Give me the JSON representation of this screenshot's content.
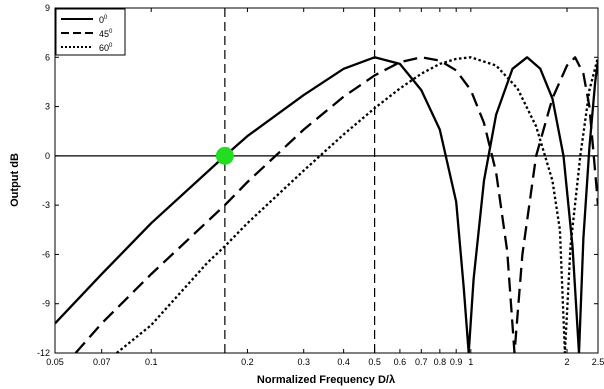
{
  "chart_data": {
    "type": "line",
    "xlabel": "Normalized Frequency  D/λ",
    "ylabel": "Output  dB",
    "x_scale": "log",
    "xlim": [
      0.05,
      2.5
    ],
    "ylim": [
      -12,
      9
    ],
    "x_ticks": [
      0.05,
      0.07,
      0.1,
      0.2,
      0.3,
      0.4,
      0.5,
      0.6,
      0.7,
      0.8,
      0.9,
      1,
      2,
      2.5
    ],
    "x_tick_labels": [
      "0.05",
      "0.07",
      "0.1",
      "0.2",
      "0.3",
      "0.4",
      "0.5",
      "0.6",
      "0.7",
      "0.8",
      "0.9",
      "1",
      "2",
      "2.5"
    ],
    "y_ticks": [
      -12,
      -9,
      -6,
      -3,
      0,
      3,
      6,
      9
    ],
    "y_tick_labels": [
      "-12",
      "-9",
      "-6",
      "-3",
      "0",
      "3",
      "6",
      "9"
    ],
    "grid": false,
    "legend": {
      "position": "top-left"
    },
    "series": [
      {
        "name": "0",
        "name_sup": "0",
        "style": "solid",
        "points": [
          [
            0.05,
            -10.2
          ],
          [
            0.07,
            -7.2
          ],
          [
            0.1,
            -4.1
          ],
          [
            0.17,
            0.0
          ],
          [
            0.2,
            1.2
          ],
          [
            0.3,
            3.7
          ],
          [
            0.4,
            5.3
          ],
          [
            0.5,
            6.0
          ],
          [
            0.6,
            5.6
          ],
          [
            0.7,
            4.0
          ],
          [
            0.8,
            1.6
          ],
          [
            0.9,
            -2.8
          ],
          [
            0.95,
            -8.0
          ],
          [
            0.985,
            -12
          ],
          [
            1.02,
            -7.5
          ],
          [
            1.1,
            -1.5
          ],
          [
            1.2,
            2.5
          ],
          [
            1.35,
            5.3
          ],
          [
            1.5,
            6.0
          ],
          [
            1.65,
            5.3
          ],
          [
            1.8,
            3.5
          ],
          [
            1.95,
            0.0
          ],
          [
            2.08,
            -5.5
          ],
          [
            2.18,
            -12
          ],
          [
            2.25,
            -5.0
          ],
          [
            2.35,
            0.5
          ],
          [
            2.45,
            4.5
          ],
          [
            2.5,
            5.8
          ]
        ]
      },
      {
        "name": "45",
        "name_sup": "0",
        "style": "dashed",
        "points": [
          [
            0.058,
            -12.0
          ],
          [
            0.07,
            -10.2
          ],
          [
            0.1,
            -7.2
          ],
          [
            0.17,
            -3.0
          ],
          [
            0.2,
            -1.6
          ],
          [
            0.3,
            1.6
          ],
          [
            0.4,
            3.6
          ],
          [
            0.5,
            4.9
          ],
          [
            0.6,
            5.7
          ],
          [
            0.7,
            6.0
          ],
          [
            0.8,
            5.8
          ],
          [
            0.9,
            5.2
          ],
          [
            1.0,
            4.0
          ],
          [
            1.1,
            2.0
          ],
          [
            1.2,
            -1.0
          ],
          [
            1.3,
            -5.8
          ],
          [
            1.37,
            -12
          ],
          [
            1.45,
            -6.0
          ],
          [
            1.6,
            0.0
          ],
          [
            1.8,
            3.5
          ],
          [
            2.0,
            5.5
          ],
          [
            2.12,
            6.0
          ],
          [
            2.25,
            5.0
          ],
          [
            2.35,
            3.0
          ],
          [
            2.45,
            -1.0
          ],
          [
            2.5,
            -3.0
          ]
        ]
      },
      {
        "name": "60",
        "name_sup": "0",
        "style": "dotted",
        "points": [
          [
            0.078,
            -12.0
          ],
          [
            0.1,
            -10.3
          ],
          [
            0.15,
            -6.5
          ],
          [
            0.17,
            -5.5
          ],
          [
            0.2,
            -4.1
          ],
          [
            0.3,
            -0.9
          ],
          [
            0.4,
            1.3
          ],
          [
            0.5,
            2.9
          ],
          [
            0.6,
            4.1
          ],
          [
            0.7,
            5.0
          ],
          [
            0.8,
            5.6
          ],
          [
            0.9,
            5.9
          ],
          [
            1.0,
            6.0
          ],
          [
            1.2,
            5.5
          ],
          [
            1.4,
            4.1
          ],
          [
            1.6,
            1.8
          ],
          [
            1.8,
            -1.5
          ],
          [
            1.9,
            -4.5
          ],
          [
            1.97,
            -12
          ],
          [
            2.05,
            -5.5
          ],
          [
            2.2,
            0.0
          ],
          [
            2.35,
            4.0
          ],
          [
            2.5,
            6.0
          ]
        ]
      }
    ],
    "reference_lines": {
      "vertical": [
        0.17,
        0.5
      ],
      "horizontal": [
        0
      ]
    },
    "marker": {
      "x": 0.17,
      "y": 0,
      "color": "#22dd22"
    }
  }
}
